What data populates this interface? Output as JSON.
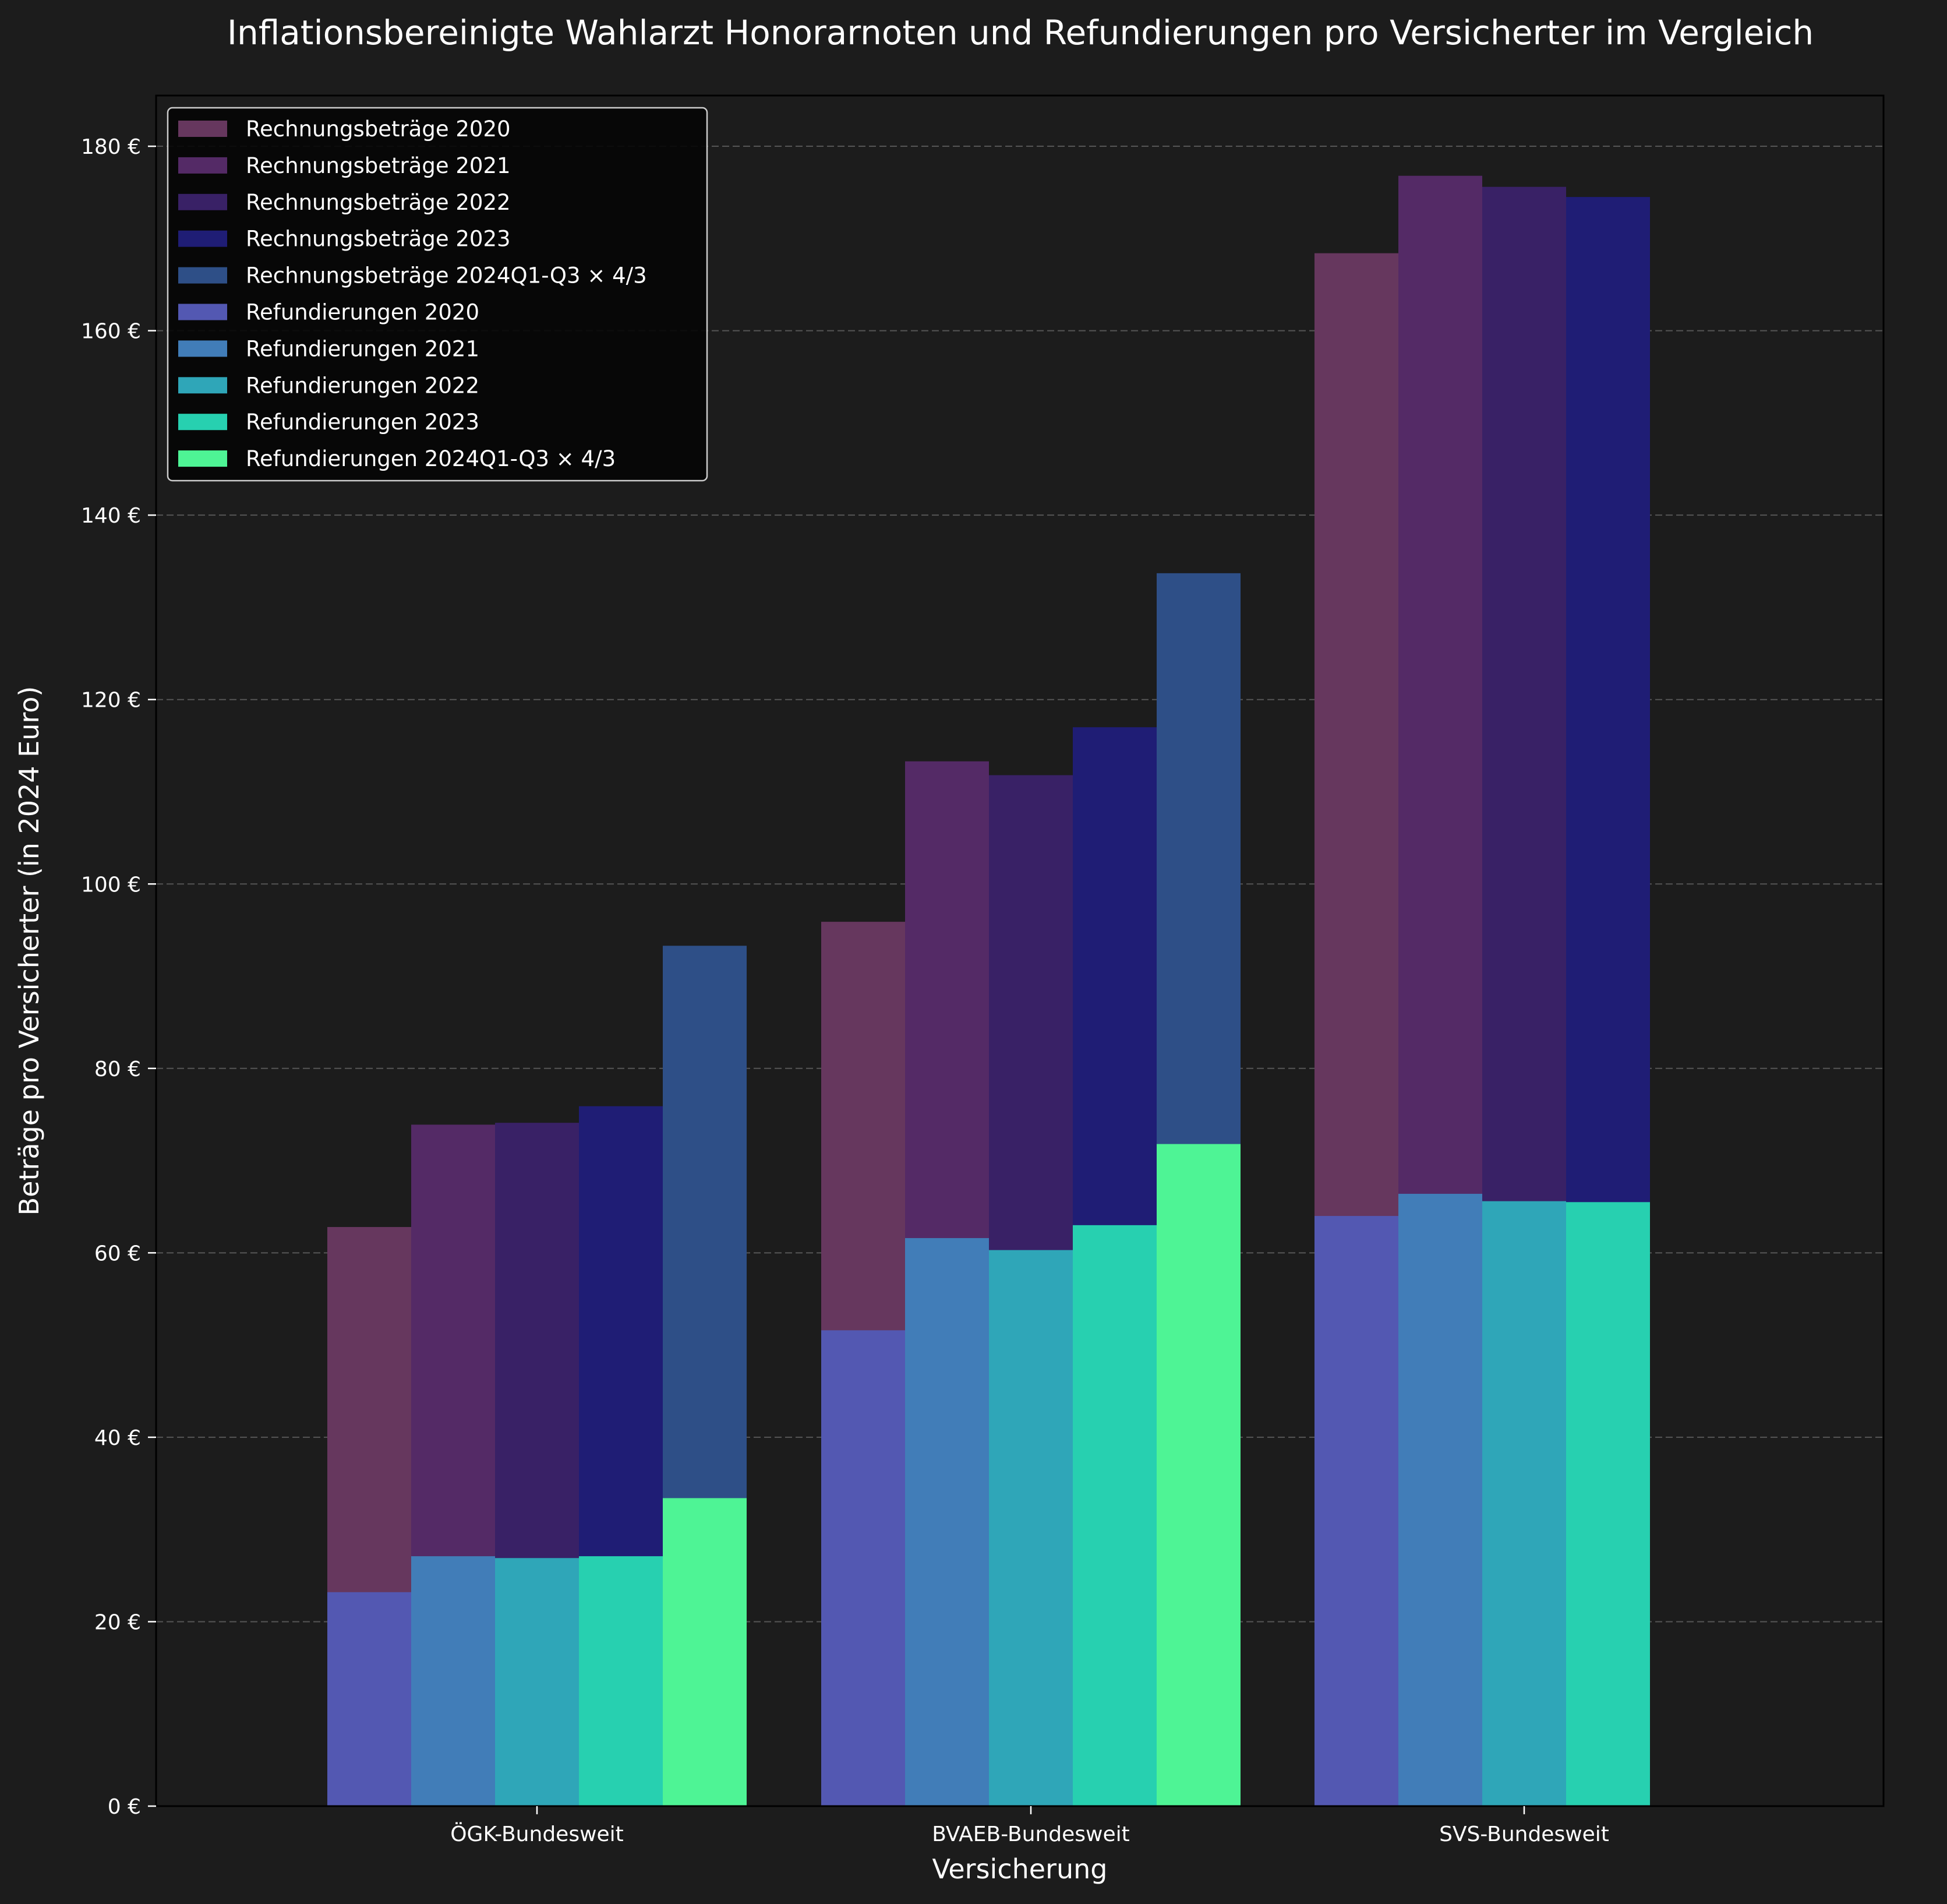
{
  "chart_data": {
    "type": "bar",
    "title": "Inflationsbereinigte Wahlarzt Honorarnoten und Refundierungen pro Versicherter im Vergleich",
    "xlabel": "Versicherung",
    "ylabel": "Beträge pro Versicherter (in 2024 Euro)",
    "ylim": [
      0,
      185.5
    ],
    "y_ticks": [
      0,
      20,
      40,
      60,
      80,
      100,
      120,
      140,
      160,
      180
    ],
    "y_tick_suffix": " €",
    "grid": "horizontal, dashed",
    "legend_position": "top-left",
    "categories": [
      "ÖGK-Bundesweit",
      "BVAEB-Bundesweit",
      "SVS-Bundesweit"
    ],
    "periods": [
      "2020",
      "2021",
      "2022",
      "2023",
      "2024Q1-Q3 × 4/3"
    ],
    "series": [
      {
        "name": "Rechnungsbeträge 2020",
        "group": "rechnung",
        "period_index": 0,
        "color": "#66375e",
        "values": [
          62.8,
          95.9,
          168.4
        ]
      },
      {
        "name": "Rechnungsbeträge 2021",
        "group": "rechnung",
        "period_index": 1,
        "color": "#542a66",
        "values": [
          73.9,
          113.3,
          176.8
        ]
      },
      {
        "name": "Rechnungsbeträge 2022",
        "group": "rechnung",
        "period_index": 2,
        "color": "#392166",
        "values": [
          74.1,
          111.8,
          175.6
        ]
      },
      {
        "name": "Rechnungsbeträge 2023",
        "group": "rechnung",
        "period_index": 3,
        "color": "#1f1d75",
        "values": [
          75.9,
          117.0,
          174.5
        ]
      },
      {
        "name": "Rechnungsbeträge 2024Q1-Q3 × 4/3",
        "group": "rechnung",
        "period_index": 4,
        "color": "#2e4f87",
        "values": [
          93.3,
          133.7,
          null
        ]
      },
      {
        "name": "Refundierungen 2020",
        "group": "refund",
        "period_index": 0,
        "color": "#5358b2",
        "values": [
          23.2,
          51.6,
          64.0
        ]
      },
      {
        "name": "Refundierungen 2021",
        "group": "refund",
        "period_index": 1,
        "color": "#417db8",
        "values": [
          27.1,
          61.6,
          66.4
        ]
      },
      {
        "name": "Refundierungen 2022",
        "group": "refund",
        "period_index": 2,
        "color": "#2fa6b8",
        "values": [
          26.9,
          60.3,
          65.6
        ]
      },
      {
        "name": "Refundierungen 2023",
        "group": "refund",
        "period_index": 3,
        "color": "#27d0b0",
        "values": [
          27.1,
          63.0,
          65.5
        ]
      },
      {
        "name": "Refundierungen 2024Q1-Q3 × 4/3",
        "group": "refund",
        "period_index": 4,
        "color": "#4ef495",
        "values": [
          33.4,
          71.8,
          null
        ]
      }
    ]
  }
}
